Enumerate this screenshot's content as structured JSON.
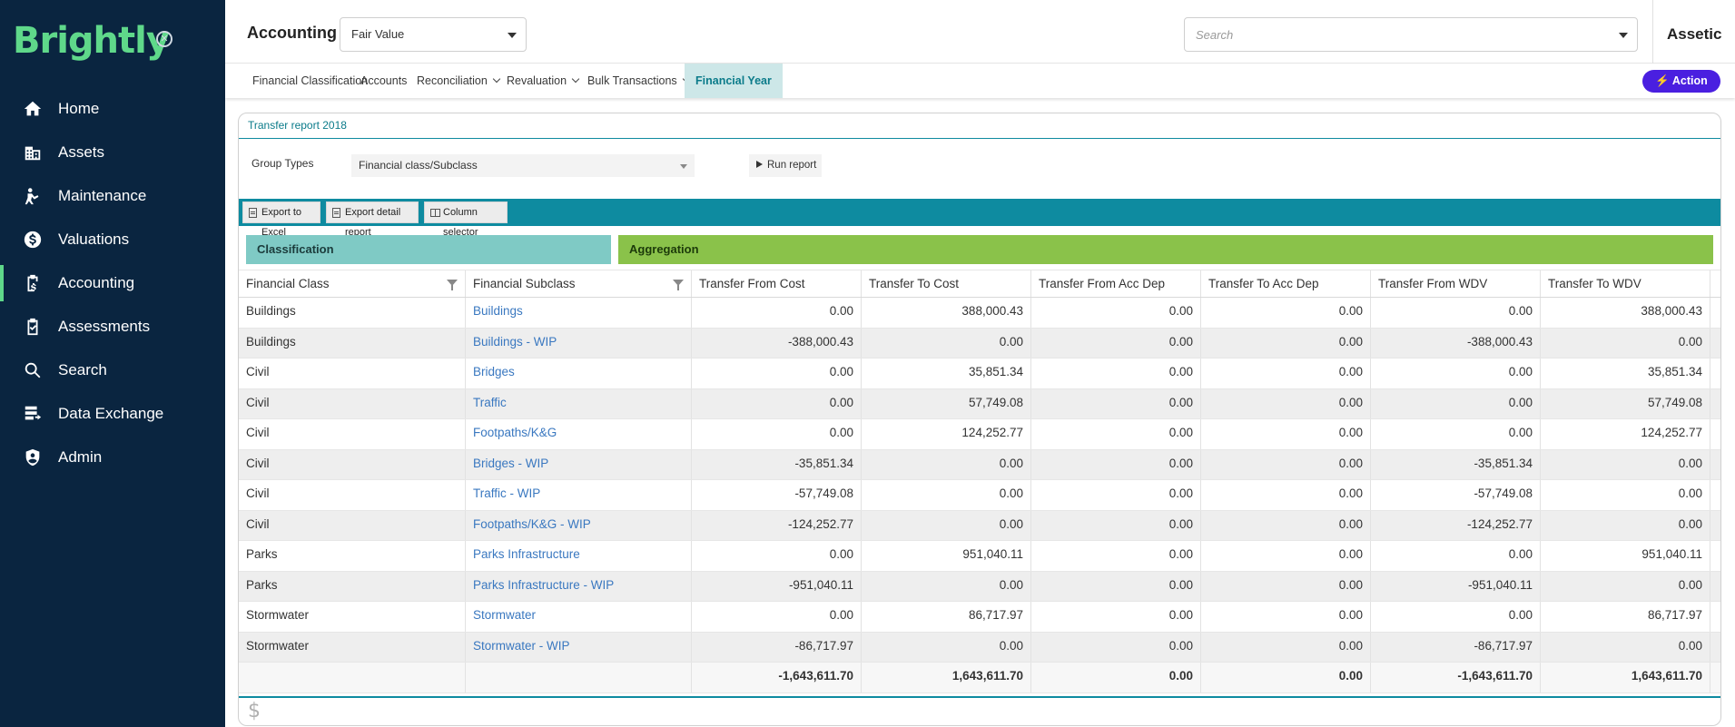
{
  "app": {
    "logo_text": "Brightly",
    "brand_name": "Assetic"
  },
  "sidebar": {
    "items": [
      {
        "label": "Home",
        "icon": "home-icon"
      },
      {
        "label": "Assets",
        "icon": "building-icon"
      },
      {
        "label": "Maintenance",
        "icon": "worker-icon"
      },
      {
        "label": "Valuations",
        "icon": "coin-icon"
      },
      {
        "label": "Accounting",
        "icon": "clipboard-dollar-icon",
        "active": true
      },
      {
        "label": "Assessments",
        "icon": "clipboard-check-icon"
      },
      {
        "label": "Search",
        "icon": "search-icon"
      },
      {
        "label": "Data Exchange",
        "icon": "data-exchange-icon"
      },
      {
        "label": "Admin",
        "icon": "shield-user-icon"
      }
    ]
  },
  "header": {
    "module_title": "Accounting",
    "mode_select_value": "Fair Value",
    "search_placeholder": "Search"
  },
  "tabs": [
    {
      "label": "Financial Classification",
      "dropdown": false
    },
    {
      "label": "Accounts",
      "dropdown": false
    },
    {
      "label": "Reconciliation",
      "dropdown": true
    },
    {
      "label": "Revaluation",
      "dropdown": true
    },
    {
      "label": "Bulk Transactions",
      "dropdown": true
    },
    {
      "label": "Financial Year",
      "dropdown": false,
      "active": true
    }
  ],
  "action_button": "Action",
  "report": {
    "title": "Transfer report 2018",
    "group_types_label": "Group Types",
    "group_types_value": "Financial class/Subclass",
    "run_label": "Run report",
    "toolbar": {
      "export_excel": "Export to Excel",
      "export_detail": "Export detail report",
      "column_selector": "Column selector"
    },
    "column_groups": {
      "classification": "Classification",
      "aggregation": "Aggregation"
    },
    "columns": [
      "Financial Class",
      "Financial Subclass",
      "Transfer From Cost",
      "Transfer To Cost",
      "Transfer From Acc Dep",
      "Transfer To Acc Dep",
      "Transfer From WDV",
      "Transfer To WDV"
    ],
    "rows": [
      [
        "Buildings",
        "Buildings",
        "0.00",
        "388,000.43",
        "0.00",
        "0.00",
        "0.00",
        "388,000.43"
      ],
      [
        "Buildings",
        "Buildings - WIP",
        "-388,000.43",
        "0.00",
        "0.00",
        "0.00",
        "-388,000.43",
        "0.00"
      ],
      [
        "Civil",
        "Bridges",
        "0.00",
        "35,851.34",
        "0.00",
        "0.00",
        "0.00",
        "35,851.34"
      ],
      [
        "Civil",
        "Traffic",
        "0.00",
        "57,749.08",
        "0.00",
        "0.00",
        "0.00",
        "57,749.08"
      ],
      [
        "Civil",
        "Footpaths/K&G",
        "0.00",
        "124,252.77",
        "0.00",
        "0.00",
        "0.00",
        "124,252.77"
      ],
      [
        "Civil",
        "Bridges - WIP",
        "-35,851.34",
        "0.00",
        "0.00",
        "0.00",
        "-35,851.34",
        "0.00"
      ],
      [
        "Civil",
        "Traffic - WIP",
        "-57,749.08",
        "0.00",
        "0.00",
        "0.00",
        "-57,749.08",
        "0.00"
      ],
      [
        "Civil",
        "Footpaths/K&G - WIP",
        "-124,252.77",
        "0.00",
        "0.00",
        "0.00",
        "-124,252.77",
        "0.00"
      ],
      [
        "Parks",
        "Parks Infrastructure",
        "0.00",
        "951,040.11",
        "0.00",
        "0.00",
        "0.00",
        "951,040.11"
      ],
      [
        "Parks",
        "Parks Infrastructure - WIP",
        "-951,040.11",
        "0.00",
        "0.00",
        "0.00",
        "-951,040.11",
        "0.00"
      ],
      [
        "Stormwater",
        "Stormwater",
        "0.00",
        "86,717.97",
        "0.00",
        "0.00",
        "0.00",
        "86,717.97"
      ],
      [
        "Stormwater",
        "Stormwater - WIP",
        "-86,717.97",
        "0.00",
        "0.00",
        "0.00",
        "-86,717.97",
        "0.00"
      ]
    ],
    "totals": [
      "",
      "",
      "-1,643,611.70",
      "1,643,611.70",
      "0.00",
      "0.00",
      "-1,643,611.70",
      "1,643,611.70"
    ]
  },
  "colors": {
    "sidebar_bg": "#0a2540",
    "logo_green": "#5fd88a",
    "teal": "#0e8ba0",
    "classification_bg": "#7fcac5",
    "aggregation_bg": "#8ac24a",
    "action_purple": "#4a1fe0",
    "link_blue": "#3a78c0"
  }
}
